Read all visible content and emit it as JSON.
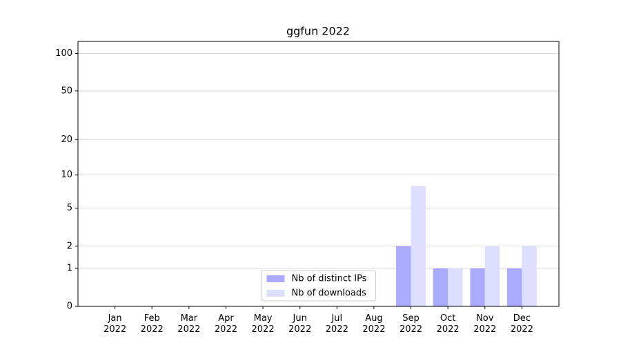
{
  "chart_data": {
    "type": "bar",
    "title": "ggfun 2022",
    "categories": [
      "Jan 2022",
      "Feb 2022",
      "Mar 2022",
      "Apr 2022",
      "May 2022",
      "Jun 2022",
      "Jul 2022",
      "Aug 2022",
      "Sep 2022",
      "Oct 2022",
      "Nov 2022",
      "Dec 2022"
    ],
    "series": [
      {
        "name": "Nb of distinct IPs",
        "color": "#aaaaff",
        "values": [
          0,
          0,
          0,
          0,
          0,
          0,
          0,
          0,
          2,
          1,
          1,
          1
        ]
      },
      {
        "name": "Nb of downloads",
        "color": "#ddddff",
        "values": [
          0,
          0,
          0,
          0,
          0,
          0,
          0,
          0,
          8,
          1,
          2,
          2
        ]
      }
    ],
    "yscale": "symlog",
    "ylim": [
      0,
      125
    ],
    "yticks": [
      0,
      1,
      2,
      5,
      10,
      20,
      50,
      100
    ],
    "grid": true,
    "legend": "lower center"
  }
}
